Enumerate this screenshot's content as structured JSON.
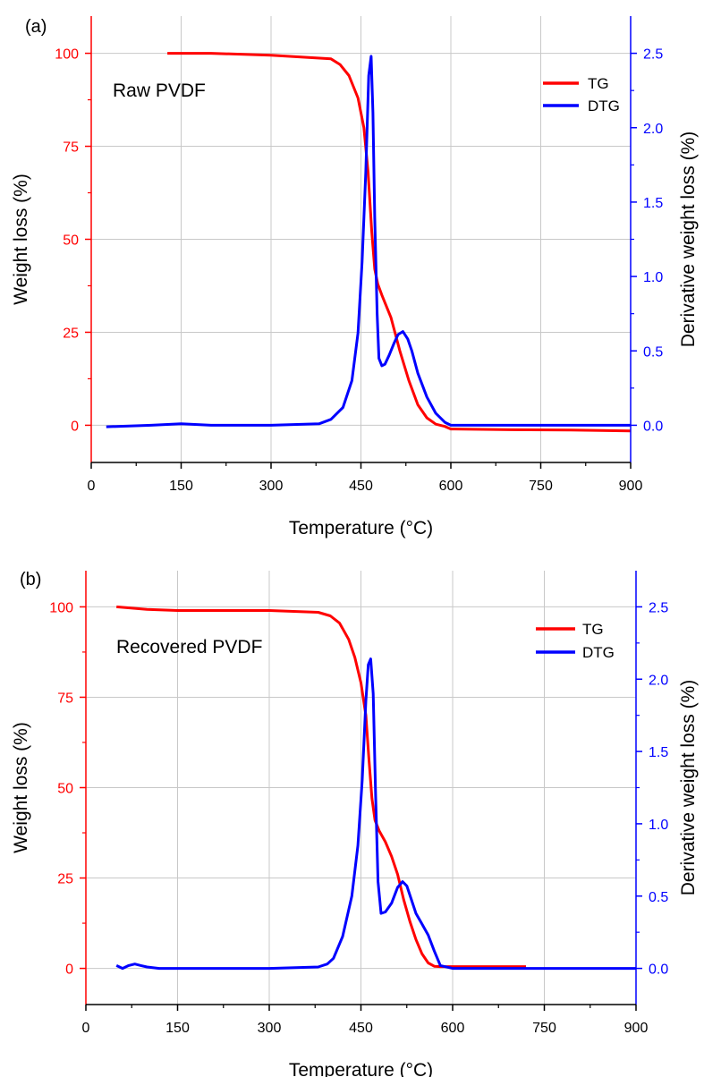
{
  "colors": {
    "tg": "#ff0000",
    "dtg": "#0000ff",
    "grid": "#c8c8c8",
    "axis": "#000000"
  },
  "chart_data": [
    {
      "type": "line",
      "panel_label": "(a)",
      "annotation": "Raw PVDF",
      "xlabel": "Temperature (°C)",
      "ylabel": "Weight loss (%)",
      "y2label": "Derivative weight loss (%)",
      "xlim": [
        0,
        900
      ],
      "ylim": [
        -10,
        110
      ],
      "y2lim": [
        -0.25,
        2.75
      ],
      "x_ticks": [
        "0",
        "150",
        "300",
        "450",
        "600",
        "750",
        "900"
      ],
      "y_ticks": [
        "0",
        "25",
        "50",
        "75",
        "100"
      ],
      "y2_ticks": [
        "0.0",
        "0.5",
        "1.0",
        "1.5",
        "2.0",
        "2.5"
      ],
      "grid": true,
      "legend_position": "top-right",
      "series": [
        {
          "name": "TG",
          "axis": "left",
          "color": "#ff0000",
          "x": [
            127,
            200,
            300,
            400,
            415,
            430,
            445,
            455,
            462,
            468,
            473,
            478,
            485,
            500,
            515,
            530,
            545,
            560,
            575,
            590,
            600,
            700,
            800,
            900
          ],
          "y": [
            100,
            100,
            99.5,
            98.5,
            97,
            94,
            88,
            80,
            68,
            52,
            42,
            38,
            35,
            29,
            20,
            12,
            5.5,
            2,
            0.3,
            -0.3,
            -1,
            -1.2,
            -1.3,
            -1.5
          ]
        },
        {
          "name": "DTG",
          "axis": "right",
          "color": "#0000ff",
          "x": [
            25,
            100,
            150,
            200,
            300,
            380,
            400,
            420,
            435,
            445,
            452,
            458,
            463,
            467,
            470,
            473,
            477,
            480,
            485,
            490,
            497,
            505,
            512,
            520,
            528,
            535,
            545,
            560,
            575,
            590,
            600,
            700,
            800,
            900
          ],
          "y": [
            -0.01,
            0.0,
            0.01,
            0.0,
            0.0,
            0.01,
            0.04,
            0.12,
            0.3,
            0.62,
            1.1,
            1.7,
            2.35,
            2.48,
            2.1,
            1.4,
            0.75,
            0.45,
            0.4,
            0.41,
            0.47,
            0.55,
            0.61,
            0.63,
            0.58,
            0.5,
            0.35,
            0.19,
            0.08,
            0.02,
            0.0,
            0.0,
            0.0,
            0.0
          ]
        }
      ]
    },
    {
      "type": "line",
      "panel_label": "(b)",
      "annotation": "Recovered PVDF",
      "xlabel": "Temperature (°C)",
      "ylabel": "Weight loss (%)",
      "y2label": "Derivative weight loss (%)",
      "xlim": [
        0,
        900
      ],
      "ylim": [
        -10,
        110
      ],
      "y2lim": [
        -0.25,
        2.75
      ],
      "x_ticks": [
        "0",
        "150",
        "300",
        "450",
        "600",
        "750",
        "900"
      ],
      "y_ticks": [
        "0",
        "25",
        "50",
        "75",
        "100"
      ],
      "y2_ticks": [
        "0.0",
        "0.5",
        "1.0",
        "1.5",
        "2.0",
        "2.5"
      ],
      "grid": true,
      "legend_position": "top-right",
      "series": [
        {
          "name": "TG",
          "axis": "left",
          "color": "#ff0000",
          "x": [
            50,
            100,
            150,
            200,
            300,
            380,
            400,
            415,
            430,
            440,
            450,
            458,
            463,
            468,
            473,
            480,
            490,
            500,
            510,
            520,
            530,
            540,
            550,
            560,
            570,
            580,
            590,
            600,
            720
          ],
          "y": [
            100,
            99.3,
            99,
            99,
            99,
            98.5,
            97.5,
            95.5,
            91,
            86,
            79,
            70,
            58,
            47,
            41,
            38,
            35,
            31,
            26,
            19,
            13,
            8,
            4,
            1.5,
            0.6,
            0.5,
            0.5,
            0.5,
            0.5
          ]
        },
        {
          "name": "DTG",
          "axis": "right",
          "color": "#0000ff",
          "x": [
            50,
            60,
            70,
            80,
            90,
            100,
            120,
            150,
            200,
            300,
            380,
            395,
            405,
            420,
            435,
            445,
            452,
            458,
            462,
            466,
            470,
            474,
            478,
            483,
            490,
            500,
            510,
            518,
            525,
            533,
            540,
            548,
            560,
            570,
            580,
            600,
            700,
            800,
            900
          ],
          "y": [
            0.02,
            0.0,
            0.02,
            0.03,
            0.02,
            0.01,
            0.0,
            0.0,
            0.0,
            0.0,
            0.01,
            0.03,
            0.07,
            0.22,
            0.5,
            0.85,
            1.3,
            1.85,
            2.1,
            2.14,
            1.9,
            1.2,
            0.6,
            0.38,
            0.39,
            0.45,
            0.56,
            0.6,
            0.57,
            0.47,
            0.38,
            0.32,
            0.23,
            0.12,
            0.02,
            0.0,
            0.0,
            0.0,
            0.0
          ]
        }
      ]
    }
  ]
}
